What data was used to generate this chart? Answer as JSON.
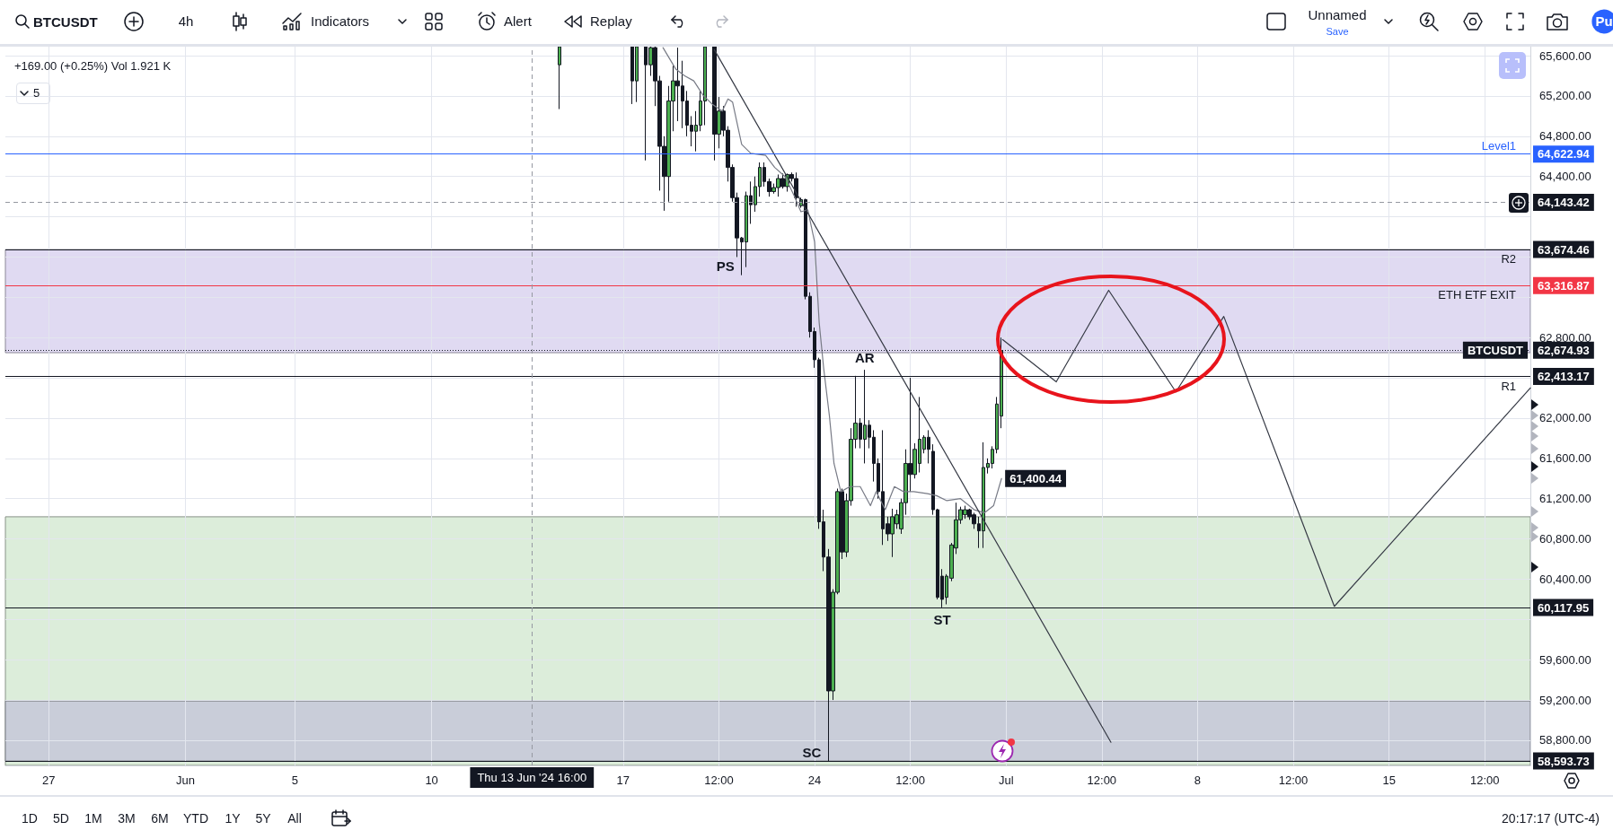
{
  "chart_data": {
    "type": "candlestick",
    "title": "BTCUSDT",
    "series": [
      {
        "colors": [
          "#4caf50",
          "#131722",
          "#4caf50",
          "#131722",
          "#4caf50",
          "#131722",
          "#131722",
          "#131722",
          "#4caf50",
          "#4caf50",
          "#131722",
          "#131722",
          "#131722",
          "#131722",
          "#4caf50",
          "#4caf50",
          "#4caf50",
          "#131722",
          "#4caf50",
          "#131722",
          "#131722",
          "#131722",
          "#131722",
          "#131722",
          "#4caf50",
          "#131722",
          "#4caf50",
          "#4caf50",
          "#131722",
          "#131722",
          "#4caf50",
          "#4caf50",
          "#131722",
          "#4caf50",
          "#131722",
          "#131722",
          "#4caf50",
          "#131722",
          "#131722",
          "#131722",
          "#131722",
          "#131722",
          "#131722",
          "#4caf50",
          "#4caf50",
          "#131722",
          "#4caf50",
          "#4caf50",
          "#4caf50",
          "#131722",
          "#4caf50",
          "#131722",
          "#131722",
          "#131722",
          "#131722",
          "#131722",
          "#4caf50",
          "#4caf50",
          "#4caf50",
          "#4caf50",
          "#131722",
          "#4caf50",
          "#4caf50",
          "#4caf50",
          "#131722",
          "#131722",
          "#131722",
          "#131722",
          "#4caf50",
          "#4caf50",
          "#4caf50",
          "#4caf50",
          "#4caf50",
          "#131722",
          "#131722",
          "#131722",
          "#4caf50",
          "#4caf50",
          "#4caf50",
          "#4caf50",
          "#4caf50"
        ],
        "x": [
          "2024-06-14T16:00",
          "2024-06-17T08:00",
          "2024-06-17T12:00",
          "2024-06-17T20:00",
          "2024-06-18T00:00",
          "2024-06-18T04:00",
          "2024-06-18T08:00",
          "2024-06-18T12:00",
          "2024-06-18T16:00",
          "2024-06-18T20:00",
          "2024-06-19T00:00",
          "2024-06-19T04:00",
          "2024-06-19T08:00",
          "2024-06-19T12:00",
          "2024-06-19T16:00",
          "2024-06-19T20:00",
          "2024-06-20T00:00",
          "2024-06-20T08:00",
          "2024-06-20T12:00",
          "2024-06-20T16:00",
          "2024-06-20T20:00",
          "2024-06-21T00:00",
          "2024-06-21T04:00",
          "2024-06-21T08:00",
          "2024-06-21T12:00",
          "2024-06-21T16:00",
          "2024-06-21T20:00",
          "2024-06-22T00:00",
          "2024-06-22T04:00",
          "2024-06-22T08:00",
          "2024-06-22T12:00",
          "2024-06-22T16:00",
          "2024-06-22T20:00",
          "2024-06-23T00:00",
          "2024-06-23T04:00",
          "2024-06-23T08:00",
          "2024-06-23T12:00",
          "2024-06-23T16:00",
          "2024-06-23T20:00",
          "2024-06-24T00:00",
          "2024-06-24T04:00",
          "2024-06-24T08:00",
          "2024-06-24T12:00",
          "2024-06-24T16:00",
          "2024-06-24T20:00",
          "2024-06-25T00:00",
          "2024-06-25T04:00",
          "2024-06-25T08:00",
          "2024-06-25T12:00",
          "2024-06-25T16:00",
          "2024-06-25T20:00",
          "2024-06-26T00:00",
          "2024-06-26T04:00",
          "2024-06-26T08:00",
          "2024-06-26T12:00",
          "2024-06-26T16:00",
          "2024-06-26T20:00",
          "2024-06-27T00:00",
          "2024-06-27T04:00",
          "2024-06-27T08:00",
          "2024-06-27T12:00",
          "2024-06-27T16:00",
          "2024-06-27T20:00",
          "2024-06-28T00:00",
          "2024-06-28T04:00",
          "2024-06-28T08:00",
          "2024-06-28T12:00",
          "2024-06-28T16:00",
          "2024-06-28T20:00",
          "2024-06-29T00:00",
          "2024-06-29T04:00",
          "2024-06-29T08:00",
          "2024-06-29T12:00",
          "2024-06-29T16:00",
          "2024-06-29T20:00",
          "2024-06-30T00:00",
          "2024-06-30T04:00",
          "2024-06-30T08:00",
          "2024-06-30T12:00",
          "2024-06-30T16:00",
          "2024-06-30T20:00"
        ],
        "ohlc": [
          [
            65510,
            65690,
            65070,
            65690
          ],
          [
            65690,
            65690,
            65120,
            65350
          ],
          [
            65350,
            65690,
            65140,
            65690
          ],
          [
            65690,
            65690,
            64560,
            65510
          ],
          [
            65510,
            65690,
            65400,
            65680
          ],
          [
            65680,
            65690,
            65100,
            65350
          ],
          [
            65350,
            65400,
            64260,
            64700
          ],
          [
            64700,
            64800,
            64060,
            64400
          ],
          [
            64400,
            65300,
            64150,
            65150
          ],
          [
            65150,
            65500,
            64850,
            65350
          ],
          [
            65350,
            65680,
            64950,
            65300
          ],
          [
            65300,
            65550,
            64880,
            65150
          ],
          [
            65150,
            65250,
            64800,
            64910
          ],
          [
            64910,
            65000,
            64700,
            64850
          ],
          [
            64850,
            65050,
            64650,
            64910
          ],
          [
            64910,
            65250,
            64850,
            65150
          ],
          [
            65150,
            65690,
            64910,
            65690
          ],
          [
            65690,
            65690,
            64560,
            64820
          ],
          [
            64820,
            65190,
            64680,
            65050
          ],
          [
            65050,
            65100,
            64800,
            64860
          ],
          [
            64860,
            64900,
            64350,
            64490
          ],
          [
            64490,
            64520,
            64150,
            64190
          ],
          [
            64190,
            64240,
            63600,
            63790
          ],
          [
            63790,
            63800,
            63420,
            63750
          ],
          [
            63750,
            64250,
            63500,
            64210
          ],
          [
            64210,
            64350,
            63930,
            64120
          ],
          [
            64120,
            64400,
            64050,
            64300
          ],
          [
            64300,
            64540,
            64200,
            64490
          ],
          [
            64490,
            64540,
            64300,
            64350
          ],
          [
            64350,
            64380,
            64200,
            64250
          ],
          [
            64250,
            64330,
            64230,
            64290
          ],
          [
            64290,
            64420,
            64200,
            64380
          ],
          [
            64380,
            64430,
            64280,
            64300
          ],
          [
            64300,
            64430,
            64250,
            64420
          ],
          [
            64420,
            64440,
            64350,
            64380
          ],
          [
            64380,
            64440,
            64100,
            64190
          ],
          [
            64110,
            64190,
            64090,
            64170
          ],
          [
            64170,
            64180,
            63180,
            63210
          ],
          [
            63210,
            63250,
            62800,
            62860
          ],
          [
            62860,
            62900,
            62500,
            62580
          ],
          [
            62580,
            62600,
            60900,
            60970
          ],
          [
            60970,
            61090,
            60480,
            60620
          ],
          [
            60620,
            60700,
            58590,
            59290
          ],
          [
            59290,
            60300,
            59200,
            60270
          ],
          [
            60270,
            61300,
            60250,
            61270
          ],
          [
            61270,
            61300,
            60600,
            60670
          ],
          [
            60670,
            61250,
            60620,
            61180
          ],
          [
            61180,
            61900,
            61130,
            61790
          ],
          [
            61790,
            62420,
            61700,
            61950
          ],
          [
            61950,
            62000,
            61700,
            61790
          ],
          [
            61790,
            62480,
            61550,
            61930
          ],
          [
            61930,
            61980,
            61700,
            61810
          ],
          [
            61810,
            61880,
            61370,
            61550
          ],
          [
            61550,
            61600,
            61200,
            61270
          ],
          [
            61270,
            61880,
            60740,
            60900
          ],
          [
            60950,
            61020,
            60780,
            60850
          ],
          [
            60850,
            61100,
            60620,
            61020
          ],
          [
            60950,
            61090,
            60900,
            61040
          ],
          [
            60900,
            61200,
            60850,
            61160
          ],
          [
            61160,
            61690,
            61040,
            61550
          ],
          [
            61550,
            62400,
            61270,
            61440
          ],
          [
            61440,
            61750,
            61400,
            61690
          ],
          [
            61550,
            62210,
            61460,
            61790
          ],
          [
            61690,
            61830,
            61650,
            61810
          ],
          [
            61810,
            61880,
            61550,
            61690
          ],
          [
            61670,
            61740,
            61040,
            61090
          ],
          [
            61090,
            61100,
            60200,
            60220
          ],
          [
            60430,
            60500,
            60120,
            60200
          ],
          [
            60220,
            60450,
            60150,
            60430
          ],
          [
            60410,
            60760,
            60380,
            60740
          ],
          [
            60710,
            61160,
            60650,
            60990
          ],
          [
            60990,
            61120,
            60950,
            61090
          ],
          [
            61040,
            61130,
            61000,
            61090
          ],
          [
            61090,
            61100,
            60990,
            61020
          ],
          [
            61040,
            61060,
            60900,
            60950
          ],
          [
            60950,
            61020,
            60710,
            60880
          ],
          [
            60880,
            61760,
            60710,
            61510
          ],
          [
            61510,
            61600,
            61450,
            61550
          ],
          [
            61550,
            61720,
            61500,
            61690
          ],
          [
            61690,
            62210,
            61650,
            62140
          ],
          [
            62020,
            62800,
            61900,
            62670
          ]
        ]
      },
      {
        "type": "line",
        "color": "#787b86",
        "x": [
          "2024-06-18T11:00",
          "2024-06-18T22:00",
          "2024-06-19T06:00",
          "2024-06-19T14:00",
          "2024-06-19T22:00",
          "2024-06-20T06:00",
          "2024-06-20T15:00",
          "2024-06-20T20:00",
          "2024-06-21T00:00",
          "2024-06-21T08:00",
          "2024-06-21T16:00",
          "2024-06-22T05:00",
          "2024-06-22T13:00",
          "2024-06-22T22:00",
          "2024-06-23T06:00",
          "2024-06-23T12:00",
          "2024-06-23T18:00",
          "2024-06-24T00:00",
          "2024-06-24T04:00",
          "2024-06-24T08:00",
          "2024-06-24T13:00",
          "2024-06-24T17:00",
          "2024-06-24T23:00",
          "2024-06-25T07:00",
          "2024-06-25T16:00",
          "2024-06-26T01:00",
          "2024-06-26T06:00",
          "2024-06-26T14:00",
          "2024-06-26T22:00",
          "2024-06-27T06:00",
          "2024-06-27T15:00",
          "2024-06-28T03:00",
          "2024-06-28T11:00",
          "2024-06-28T20:00",
          "2024-06-29T08:00",
          "2024-06-29T20:00",
          "2024-06-30T05:00",
          "2024-06-30T13:00",
          "2024-06-30T20:00"
        ],
        "values": [
          65680,
          65470,
          65400,
          65350,
          65210,
          65120,
          65050,
          65170,
          65140,
          64720,
          64630,
          64610,
          64490,
          64400,
          64210,
          64050,
          64070,
          63750,
          62950,
          62490,
          62020,
          61550,
          61270,
          61320,
          61320,
          61130,
          61270,
          61090,
          61320,
          61270,
          61270,
          61250,
          61230,
          61180,
          61200,
          61090,
          61060,
          61130,
          61400.44
        ],
        "value_labels": [
          null,
          null,
          null,
          null,
          null,
          null,
          null,
          null,
          null,
          null,
          null,
          null,
          null,
          null,
          null,
          null,
          null,
          null,
          null,
          null,
          null,
          null,
          null,
          null,
          null,
          null,
          null,
          null,
          null,
          null,
          null,
          null,
          null,
          null,
          null,
          null,
          null,
          null,
          "61,400.44"
        ]
      },
      {
        "type": "line",
        "color": "#363a45",
        "x": [
          "2024-06-20T08:00",
          "2024-07-04T20:00"
        ],
        "values": [
          65660,
          58780
        ]
      },
      {
        "type": "line",
        "color": "#363a45",
        "x": [
          "2024-06-30T21:00",
          "2024-07-02T20:00",
          "2024-07-04T18:00",
          "2024-07-07T05:00",
          "2024-07-08T23:00",
          "2024-07-13T00:00",
          "2024-07-20T04:00"
        ],
        "values": [
          62780,
          62360,
          63270,
          62260,
          63010,
          60130,
          62300
        ]
      }
    ],
    "xlim": [
      "2024-05-25T10:00",
      "2024-07-20T04:00"
    ],
    "xticks": [
      {
        "value": "2024-05-27",
        "label": "27"
      },
      {
        "value": "2024-06-01",
        "label": "Jun"
      },
      {
        "value": "2024-06-05",
        "label": "5"
      },
      {
        "value": "2024-06-10",
        "label": "10"
      },
      {
        "value": "2024-06-17",
        "label": "17"
      },
      {
        "value": "2024-06-20T12:00",
        "label": "12:00"
      },
      {
        "value": "2024-06-24",
        "label": "24"
      },
      {
        "value": "2024-06-27T12:00",
        "label": "12:00"
      },
      {
        "value": "2024-07-01",
        "label": "Jul"
      },
      {
        "value": "2024-07-04T12:00",
        "label": "12:00"
      },
      {
        "value": "2024-07-08",
        "label": "8"
      },
      {
        "value": "2024-07-11T12:00",
        "label": "12:00"
      },
      {
        "value": "2024-07-15",
        "label": "15"
      },
      {
        "value": "2024-07-18T12:00",
        "label": "12:00"
      }
    ],
    "ylim": [
      58550,
      65690
    ],
    "yticks": [
      {
        "value": 58800,
        "label": "58,800.00"
      },
      {
        "value": 59200,
        "label": "59,200.00"
      },
      {
        "value": 59600,
        "label": "59,600.00"
      },
      {
        "value": 60000,
        "label": null
      },
      {
        "value": 60400,
        "label": "60,400.00"
      },
      {
        "value": 60800,
        "label": "60,800.00"
      },
      {
        "value": 61200,
        "label": "61,200.00"
      },
      {
        "value": 61600,
        "label": "61,600.00"
      },
      {
        "value": 62000,
        "label": "62,000.00"
      },
      {
        "value": 62400,
        "label": null
      },
      {
        "value": 62800,
        "label": "62,800.00"
      },
      {
        "value": 63200,
        "label": null
      },
      {
        "value": 63600,
        "label": null
      },
      {
        "value": 64000,
        "label": null
      },
      {
        "value": 64400,
        "label": "64,400.00"
      },
      {
        "value": 64800,
        "label": "64,800.00"
      },
      {
        "value": 65200,
        "label": "65,200.00"
      },
      {
        "value": 65600,
        "label": "65,600.00"
      }
    ],
    "grid": true,
    "bands": [
      {
        "axis": "y",
        "from": 58550,
        "to": 61020,
        "color": "#dcedda"
      },
      {
        "axis": "y",
        "from": 62650,
        "to": 63674.46,
        "color": "#e0daf2"
      },
      {
        "axis": "y",
        "from": 58593.73,
        "to": 59190,
        "color": "#c9cdd9"
      }
    ],
    "ref_lines": [
      {
        "axis": "y",
        "value": 64622.94,
        "label": "64,622.94",
        "color": "#2962ff"
      },
      {
        "axis": "y",
        "value": 64143.42,
        "label": "64,143.42",
        "color": "#9598a1",
        "line_style": "dashed"
      },
      {
        "axis": "y",
        "value": 63674.46,
        "label": "63,674.46",
        "color": "#131722"
      },
      {
        "axis": "y",
        "value": 63316.87,
        "label": "63,316.87",
        "color": "#f23645"
      },
      {
        "axis": "y",
        "value": 62674.93,
        "label": "62,674.93",
        "color": "#131722",
        "line_style": "dotted"
      },
      {
        "axis": "y",
        "value": 62413.17,
        "label": "62,413.17",
        "color": "#131722"
      },
      {
        "axis": "y",
        "value": 60117.95,
        "label": "60,117.95",
        "color": "#131722"
      },
      {
        "axis": "y",
        "value": 58593.73,
        "label": "58,593.73",
        "color": "#131722"
      },
      {
        "axis": "x",
        "value": "2024-06-13T16:00",
        "label": "Thu 13 Jun '24 16:00",
        "color": "#9598a1",
        "line_style": "dashed"
      }
    ],
    "annotations": [
      "+169.00 (+0.25%)  Vol 1.921 K",
      "5",
      "4h",
      "Indicators",
      "Alert",
      "Replay",
      "Unnamed",
      "Save",
      "Pu",
      "1D",
      "5D",
      "1M",
      "3M",
      "6M",
      "YTD",
      "1Y",
      "5Y",
      "All",
      "20:17:17 (UTC-4)",
      {
        "text": "Level1",
        "x": "2024-07-20T04:00",
        "y": 64622.94
      },
      {
        "text": "R2",
        "x": "2024-07-20T04:00",
        "y": 63674.46
      },
      {
        "text": "ETH ETF EXIT",
        "x": "2024-07-20T04:00",
        "y": 63316.87
      },
      {
        "text": "BTCUSDT",
        "x": "2024-07-20T04:00",
        "y": 62674.93
      },
      {
        "text": "R1",
        "x": "2024-07-20T04:00",
        "y": 62413.17
      },
      {
        "text": "PS",
        "x": "2024-06-21T08:00",
        "y": 63420
      },
      {
        "text": "AR",
        "x": "2024-06-25T20:00",
        "y": 62480
      },
      {
        "text": "ST",
        "x": "2024-06-28T16:00",
        "y": 60120
      },
      {
        "text": "SC",
        "x": "2024-06-24T12:00",
        "y": 58590
      }
    ]
  }
}
